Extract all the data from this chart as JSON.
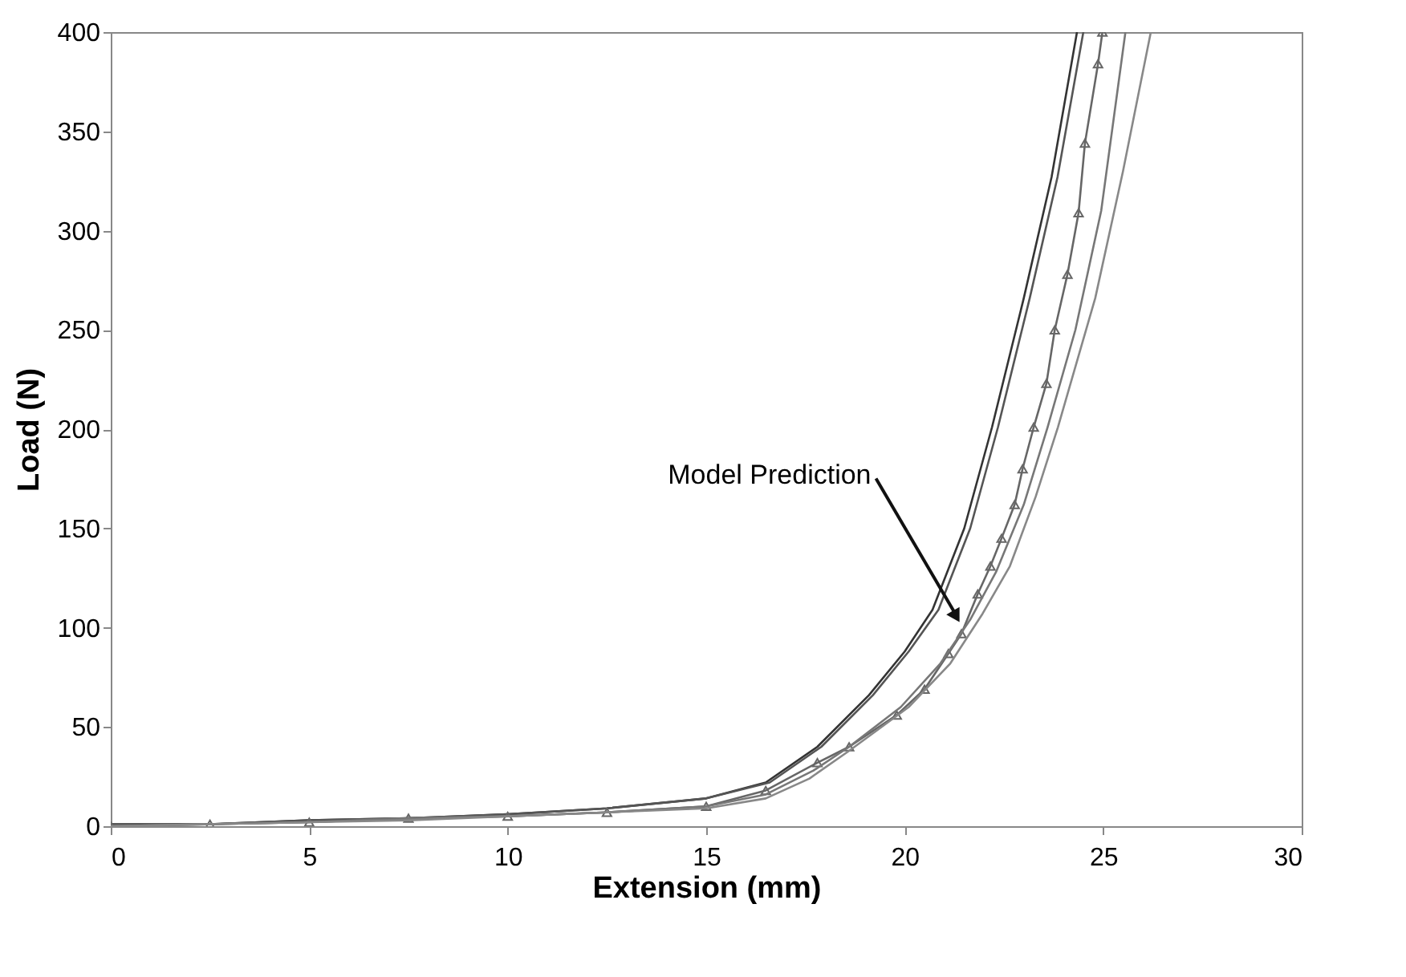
{
  "chart_data": {
    "type": "line",
    "xlabel": "Extension (mm)",
    "ylabel": "Load (N)",
    "xlim": [
      0,
      30
    ],
    "xticks": [
      0,
      5,
      10,
      15,
      20,
      25,
      30
    ],
    "ylim": [
      0,
      400
    ],
    "yticks": [
      0,
      50,
      100,
      150,
      200,
      250,
      300,
      350,
      400
    ],
    "grid": false,
    "annotations": [
      {
        "text": "Model Prediction",
        "x": 21.5,
        "y": 100
      }
    ],
    "series": [
      {
        "color": "#333333",
        "marker": "none",
        "x": [
          0,
          2.5,
          5,
          7.5,
          10,
          12.5,
          15,
          16.5,
          17.8,
          19.1,
          20,
          20.7,
          21.5,
          22.2,
          23,
          23.7,
          24.34
        ],
        "values": [
          1,
          1,
          3,
          4,
          6,
          9,
          14,
          22,
          40,
          66,
          88,
          109,
          150,
          201,
          266,
          327,
          400
        ]
      },
      {
        "color": "#555555",
        "marker": "none",
        "x": [
          0,
          2.5,
          5,
          7.5,
          10,
          12.5,
          15,
          16.6,
          17.9,
          19.2,
          20.1,
          20.85,
          21.65,
          22.35,
          23.15,
          23.85,
          24.5
        ],
        "values": [
          1,
          1,
          3,
          4,
          6,
          9,
          14,
          22,
          40,
          66,
          88,
          109,
          150,
          201,
          266,
          327,
          400
        ]
      },
      {
        "color": "#666666",
        "marker": "triangle",
        "x": [
          0,
          2.5,
          5,
          7.5,
          10,
          12.5,
          15,
          16.5,
          17.8,
          18.6,
          19.8,
          20.5,
          21.1,
          21.43,
          21.84,
          22.16,
          22.44,
          22.77,
          22.97,
          23.25,
          23.57,
          23.78,
          24.1,
          24.38,
          24.54,
          24.87,
          24.98
        ],
        "values": [
          0,
          1,
          2,
          4,
          5,
          7,
          10,
          18,
          32,
          40,
          56,
          69,
          87,
          97,
          117,
          131,
          145,
          162,
          180,
          201,
          223,
          250,
          278,
          309,
          344,
          384,
          400
        ]
      },
      {
        "color": "#777777",
        "marker": "none",
        "x": [
          0,
          2.5,
          5,
          7.5,
          10,
          12.5,
          15,
          16.5,
          17.7,
          18.6,
          19.9,
          20.9,
          21.65,
          22.3,
          23.0,
          23.6,
          24.3,
          24.95,
          25.56
        ],
        "values": [
          0,
          1,
          2,
          4,
          5,
          7,
          10,
          16,
          28,
          40,
          60,
          82,
          104,
          128,
          162,
          201,
          250,
          310,
          400
        ]
      },
      {
        "color": "#888888",
        "marker": "none",
        "x": [
          0,
          2.5,
          5,
          7.5,
          10,
          12.5,
          15,
          16.5,
          17.6,
          18.6,
          20.1,
          21.15,
          21.96,
          22.65,
          23.3,
          23.86,
          24.8,
          25.5,
          26.2
        ],
        "values": [
          0,
          1,
          2,
          3,
          5,
          7,
          9,
          14,
          24,
          38,
          60,
          82,
          107,
          131,
          166,
          201,
          266,
          330,
          400
        ]
      }
    ]
  }
}
